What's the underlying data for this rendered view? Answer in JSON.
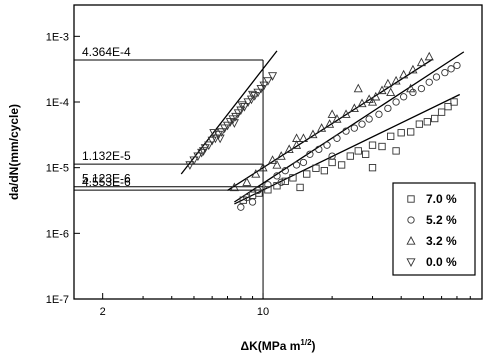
{
  "chart_data": {
    "type": "scatter",
    "title": "",
    "xlabel": "ΔK(MPa m",
    "xlabel_sup": "1/2",
    "xlabel_end": ")",
    "ylabel": "da/dN(mm/cycle)",
    "xscale": "log",
    "yscale": "log",
    "xlim": [
      1.5,
      90
    ],
    "ylim": [
      1e-07,
      0.003
    ],
    "x_ticks": [
      {
        "value": 2,
        "label": "2"
      },
      {
        "value": 10,
        "label": "10"
      }
    ],
    "y_ticks": [
      {
        "value": 1e-07,
        "label": "1E-7"
      },
      {
        "value": 1e-06,
        "label": "1E-6"
      },
      {
        "value": 1e-05,
        "label": "1E-5"
      },
      {
        "value": 0.0001,
        "label": "1E-4"
      },
      {
        "value": 0.001,
        "label": "1E-3"
      }
    ],
    "grid": false,
    "legend_position": "bottom-right",
    "series": [
      {
        "name": "7.0 %",
        "marker": "square",
        "points": [
          [
            8.2,
            3.2e-06
          ],
          [
            9,
            3.8e-06
          ],
          [
            9.6,
            4.1e-06
          ],
          [
            10.5,
            4.6e-06
          ],
          [
            11.5,
            5.3e-06
          ],
          [
            12.5,
            6.2e-06
          ],
          [
            13.5,
            7e-06
          ],
          [
            14.5,
            5e-06
          ],
          [
            15.5,
            8e-06
          ],
          [
            17,
            9.8e-06
          ],
          [
            18.5,
            9e-06
          ],
          [
            20,
            1.2e-05
          ],
          [
            22,
            1.1e-05
          ],
          [
            24,
            1.5e-05
          ],
          [
            26,
            1.8e-05
          ],
          [
            28,
            1.6e-05
          ],
          [
            30,
            2.2e-05
          ],
          [
            33,
            2.1e-05
          ],
          [
            36,
            3e-05
          ],
          [
            40,
            3.4e-05
          ],
          [
            44,
            3.5e-05
          ],
          [
            48,
            4.6e-05
          ],
          [
            52,
            5e-05
          ],
          [
            56,
            5.6e-05
          ],
          [
            60,
            7e-05
          ],
          [
            64,
            8.5e-05
          ],
          [
            68,
            0.0001
          ],
          [
            30,
            1e-05
          ],
          [
            38,
            1.8e-05
          ]
        ],
        "fit": [
          [
            7.5,
            2.8e-06
          ],
          [
            72,
            0.00013
          ]
        ]
      },
      {
        "name": "5.2 %",
        "marker": "circle",
        "points": [
          [
            8.5,
            3.5e-06
          ],
          [
            9.5,
            4.5e-06
          ],
          [
            10.5,
            5.5e-06
          ],
          [
            11.5,
            7.5e-06
          ],
          [
            12.5,
            9e-06
          ],
          [
            14,
            1.1e-05
          ],
          [
            15,
            1.2e-05
          ],
          [
            16,
            1.6e-05
          ],
          [
            17.5,
            1.9e-05
          ],
          [
            19,
            2.2e-05
          ],
          [
            21,
            2.8e-05
          ],
          [
            23,
            3.6e-05
          ],
          [
            25,
            4e-05
          ],
          [
            27,
            4.6e-05
          ],
          [
            29,
            5.5e-05
          ],
          [
            32,
            6.5e-05
          ],
          [
            35,
            8e-05
          ],
          [
            38,
            0.0001
          ],
          [
            41,
            0.00012
          ],
          [
            45,
            0.00014
          ],
          [
            49,
            0.00016
          ],
          [
            53,
            0.0002
          ],
          [
            57,
            0.00024
          ],
          [
            62,
            0.00028
          ],
          [
            66,
            0.00032
          ],
          [
            70,
            0.00036
          ],
          [
            8,
            2.5e-06
          ],
          [
            9,
            3e-06
          ],
          [
            12,
            6e-06
          ],
          [
            20,
            1.5e-05
          ]
        ],
        "fit": [
          [
            7.5,
            3e-06
          ],
          [
            75,
            0.00058
          ]
        ]
      },
      {
        "name": "3.2 %",
        "marker": "triangle-up",
        "points": [
          [
            7.5,
            5e-06
          ],
          [
            8.5,
            6e-06
          ],
          [
            9.3,
            8e-06
          ],
          [
            10,
            1e-05
          ],
          [
            11,
            1.3e-05
          ],
          [
            12,
            1.5e-05
          ],
          [
            13,
            1.9e-05
          ],
          [
            14,
            2.2e-05
          ],
          [
            15,
            2.8e-05
          ],
          [
            16.5,
            3.2e-05
          ],
          [
            18,
            4e-05
          ],
          [
            19.5,
            4.6e-05
          ],
          [
            21,
            5.5e-05
          ],
          [
            23,
            6.5e-05
          ],
          [
            25,
            8e-05
          ],
          [
            27,
            9.5e-05
          ],
          [
            29,
            0.00011
          ],
          [
            31,
            0.00012
          ],
          [
            33,
            0.00015
          ],
          [
            35,
            0.00019
          ],
          [
            38,
            0.00021
          ],
          [
            41,
            0.00026
          ],
          [
            45,
            0.00031
          ],
          [
            49,
            0.0004
          ],
          [
            53,
            0.00049
          ],
          [
            44,
            0.00016
          ],
          [
            30,
            0.0001
          ],
          [
            20,
            6.5e-05
          ],
          [
            26,
            0.00016
          ],
          [
            36,
            0.00014
          ],
          [
            11.5,
            1.1e-05
          ],
          [
            14,
            2.8e-05
          ]
        ],
        "fit": [
          [
            7,
            4.5e-06
          ],
          [
            55,
            0.00045
          ]
        ]
      },
      {
        "name": "0.0 %",
        "marker": "triangle-down",
        "points": [
          [
            4.8,
            1.1e-05
          ],
          [
            5.0,
            1.3e-05
          ],
          [
            5.2,
            1.5e-05
          ],
          [
            5.4,
            1.7e-05
          ],
          [
            5.6,
            2e-05
          ],
          [
            5.8,
            2.2e-05
          ],
          [
            6.0,
            2.6e-05
          ],
          [
            6.2,
            2.8e-05
          ],
          [
            6.4,
            3.2e-05
          ],
          [
            6.6,
            3.5e-05
          ],
          [
            6.8,
            4e-05
          ],
          [
            7.0,
            4.4e-05
          ],
          [
            7.2,
            5e-05
          ],
          [
            7.4,
            5.5e-05
          ],
          [
            7.6,
            6e-05
          ],
          [
            7.8,
            6.8e-05
          ],
          [
            8.0,
            7.5e-05
          ],
          [
            8.3,
            8.5e-05
          ],
          [
            8.6,
            0.0001
          ],
          [
            8.9,
            0.00011
          ],
          [
            9.2,
            0.000125
          ],
          [
            9.5,
            0.00014
          ],
          [
            9.8,
            0.00016
          ],
          [
            10.1,
            0.00018
          ],
          [
            10.5,
            0.00021
          ],
          [
            11.0,
            0.00025
          ],
          [
            5.5,
            1.8e-05
          ],
          [
            6.5,
            2.8e-05
          ],
          [
            7.5,
            4.8e-05
          ],
          [
            8.1,
            9e-05
          ],
          [
            9,
            0.00013
          ],
          [
            6.1,
            3.4e-05
          ]
        ],
        "fit": [
          [
            4.4,
            8e-06
          ],
          [
            11.5,
            0.0006
          ]
        ]
      }
    ],
    "annotations": [
      {
        "label": "4.364E-4",
        "y": 0.0004364
      },
      {
        "label": "1.132E-5",
        "y": 1.132e-05
      },
      {
        "label": "5.123E-6",
        "y": 5.123e-06
      },
      {
        "label": "4.553E-6",
        "y": 4.553e-06
      }
    ],
    "annotation_vline_x": 10
  }
}
